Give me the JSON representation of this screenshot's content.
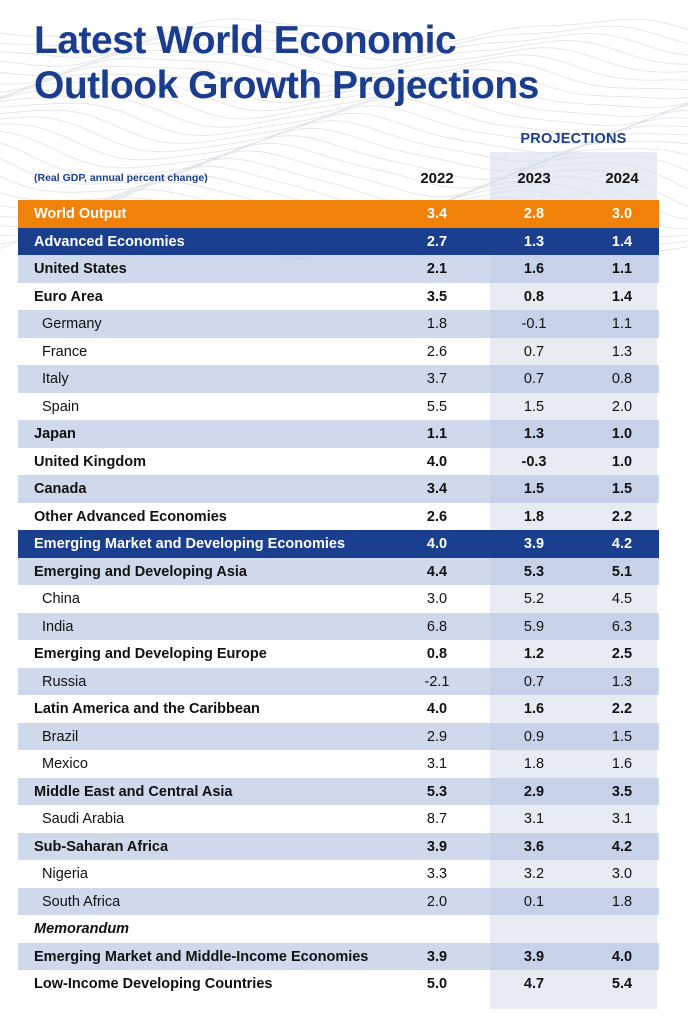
{
  "title": {
    "line1": "Latest World Economic",
    "line2": "Outlook Growth Projections"
  },
  "projections_label": "PROJECTIONS",
  "header": {
    "note": "(Real GDP, annual percent change)",
    "years": [
      "2022",
      "2023",
      "2024"
    ]
  },
  "colors": {
    "title_blue": "#1a3d8f",
    "world_output_orange": "#f0820a",
    "group_navy": "#1b3f8f",
    "row_shade": "#b0c2e0"
  },
  "rows": [
    {
      "label": "World Output",
      "v2022": "3.4",
      "v2023": "2.8",
      "v2024": "3.0",
      "style": "orange"
    },
    {
      "label": "Advanced Economies",
      "v2022": "2.7",
      "v2023": "1.3",
      "v2024": "1.4",
      "style": "navy"
    },
    {
      "label": "United States",
      "v2022": "2.1",
      "v2023": "1.6",
      "v2024": "1.1",
      "style": "shade"
    },
    {
      "label": "Euro Area",
      "v2022": "3.5",
      "v2023": "0.8",
      "v2024": "1.4",
      "style": "plain"
    },
    {
      "label": "Germany",
      "v2022": "1.8",
      "v2023": "-0.1",
      "v2024": "1.1",
      "style": "shade indent"
    },
    {
      "label": "France",
      "v2022": "2.6",
      "v2023": "0.7",
      "v2024": "1.3",
      "style": "plain indent"
    },
    {
      "label": "Italy",
      "v2022": "3.7",
      "v2023": "0.7",
      "v2024": "0.8",
      "style": "shade indent"
    },
    {
      "label": "Spain",
      "v2022": "5.5",
      "v2023": "1.5",
      "v2024": "2.0",
      "style": "plain indent"
    },
    {
      "label": "Japan",
      "v2022": "1.1",
      "v2023": "1.3",
      "v2024": "1.0",
      "style": "shade"
    },
    {
      "label": "United Kingdom",
      "v2022": "4.0",
      "v2023": "-0.3",
      "v2024": "1.0",
      "style": "plain"
    },
    {
      "label": "Canada",
      "v2022": "3.4",
      "v2023": "1.5",
      "v2024": "1.5",
      "style": "shade"
    },
    {
      "label": "Other Advanced Economies",
      "v2022": "2.6",
      "v2023": "1.8",
      "v2024": "2.2",
      "style": "plain"
    },
    {
      "label": "Emerging Market and Developing Economies",
      "v2022": "4.0",
      "v2023": "3.9",
      "v2024": "4.2",
      "style": "navy"
    },
    {
      "label": "Emerging and Developing Asia",
      "v2022": "4.4",
      "v2023": "5.3",
      "v2024": "5.1",
      "style": "shade"
    },
    {
      "label": "China",
      "v2022": "3.0",
      "v2023": "5.2",
      "v2024": "4.5",
      "style": "plain indent"
    },
    {
      "label": "India",
      "v2022": "6.8",
      "v2023": "5.9",
      "v2024": "6.3",
      "style": "shade indent"
    },
    {
      "label": "Emerging and Developing Europe",
      "v2022": "0.8",
      "v2023": "1.2",
      "v2024": "2.5",
      "style": "plain"
    },
    {
      "label": "Russia",
      "v2022": "-2.1",
      "v2023": "0.7",
      "v2024": "1.3",
      "style": "shade indent"
    },
    {
      "label": "Latin America and the Caribbean",
      "v2022": "4.0",
      "v2023": "1.6",
      "v2024": "2.2",
      "style": "plain"
    },
    {
      "label": "Brazil",
      "v2022": "2.9",
      "v2023": "0.9",
      "v2024": "1.5",
      "style": "shade indent"
    },
    {
      "label": "Mexico",
      "v2022": "3.1",
      "v2023": "1.8",
      "v2024": "1.6",
      "style": "plain indent"
    },
    {
      "label": "Middle East and Central Asia",
      "v2022": "5.3",
      "v2023": "2.9",
      "v2024": "3.5",
      "style": "shade"
    },
    {
      "label": "Saudi Arabia",
      "v2022": "8.7",
      "v2023": "3.1",
      "v2024": "3.1",
      "style": "plain indent"
    },
    {
      "label": "Sub-Saharan Africa",
      "v2022": "3.9",
      "v2023": "3.6",
      "v2024": "4.2",
      "style": "shade"
    },
    {
      "label": "Nigeria",
      "v2022": "3.3",
      "v2023": "3.2",
      "v2024": "3.0",
      "style": "plain indent"
    },
    {
      "label": "South Africa",
      "v2022": "2.0",
      "v2023": "0.1",
      "v2024": "1.8",
      "style": "shade indent"
    },
    {
      "label": "Memorandum",
      "v2022": "",
      "v2023": "",
      "v2024": "",
      "style": "plain memo"
    },
    {
      "label": "Emerging Market and Middle-Income Economies",
      "v2022": "3.9",
      "v2023": "3.9",
      "v2024": "4.0",
      "style": "shade"
    },
    {
      "label": "Low-Income Developing Countries",
      "v2022": "5.0",
      "v2023": "4.7",
      "v2024": "5.4",
      "style": "plain"
    }
  ]
}
